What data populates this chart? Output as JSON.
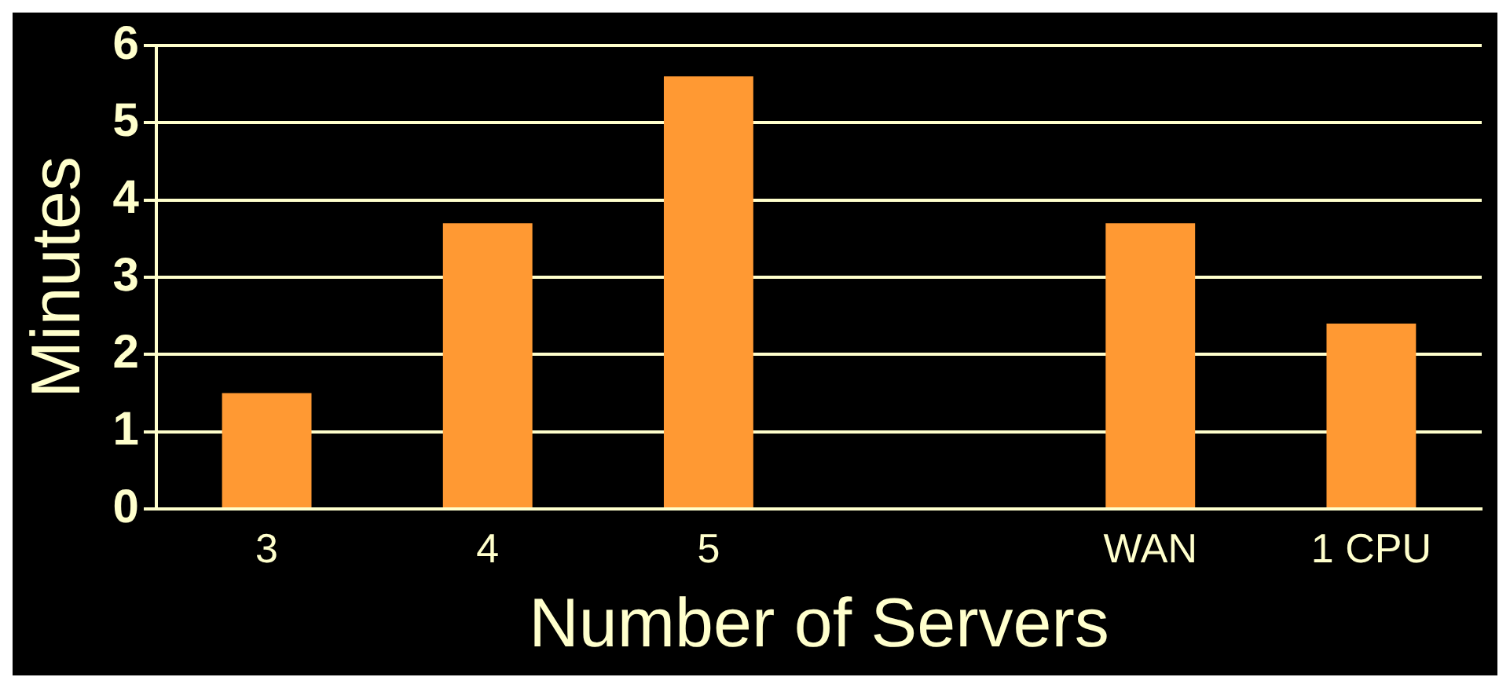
{
  "chart_data": {
    "type": "bar",
    "xlabel": "Number of Servers",
    "ylabel": "Minutes",
    "categories": [
      "3",
      "4",
      "5",
      null,
      "WAN",
      "1 CPU"
    ],
    "values": [
      1.5,
      3.7,
      5.6,
      null,
      3.7,
      2.4
    ],
    "color": "#ff9933",
    "ylim": [
      0,
      6
    ],
    "yticks": [
      0,
      1,
      2,
      3,
      4,
      5,
      6
    ],
    "grid": "y",
    "legend": false
  }
}
